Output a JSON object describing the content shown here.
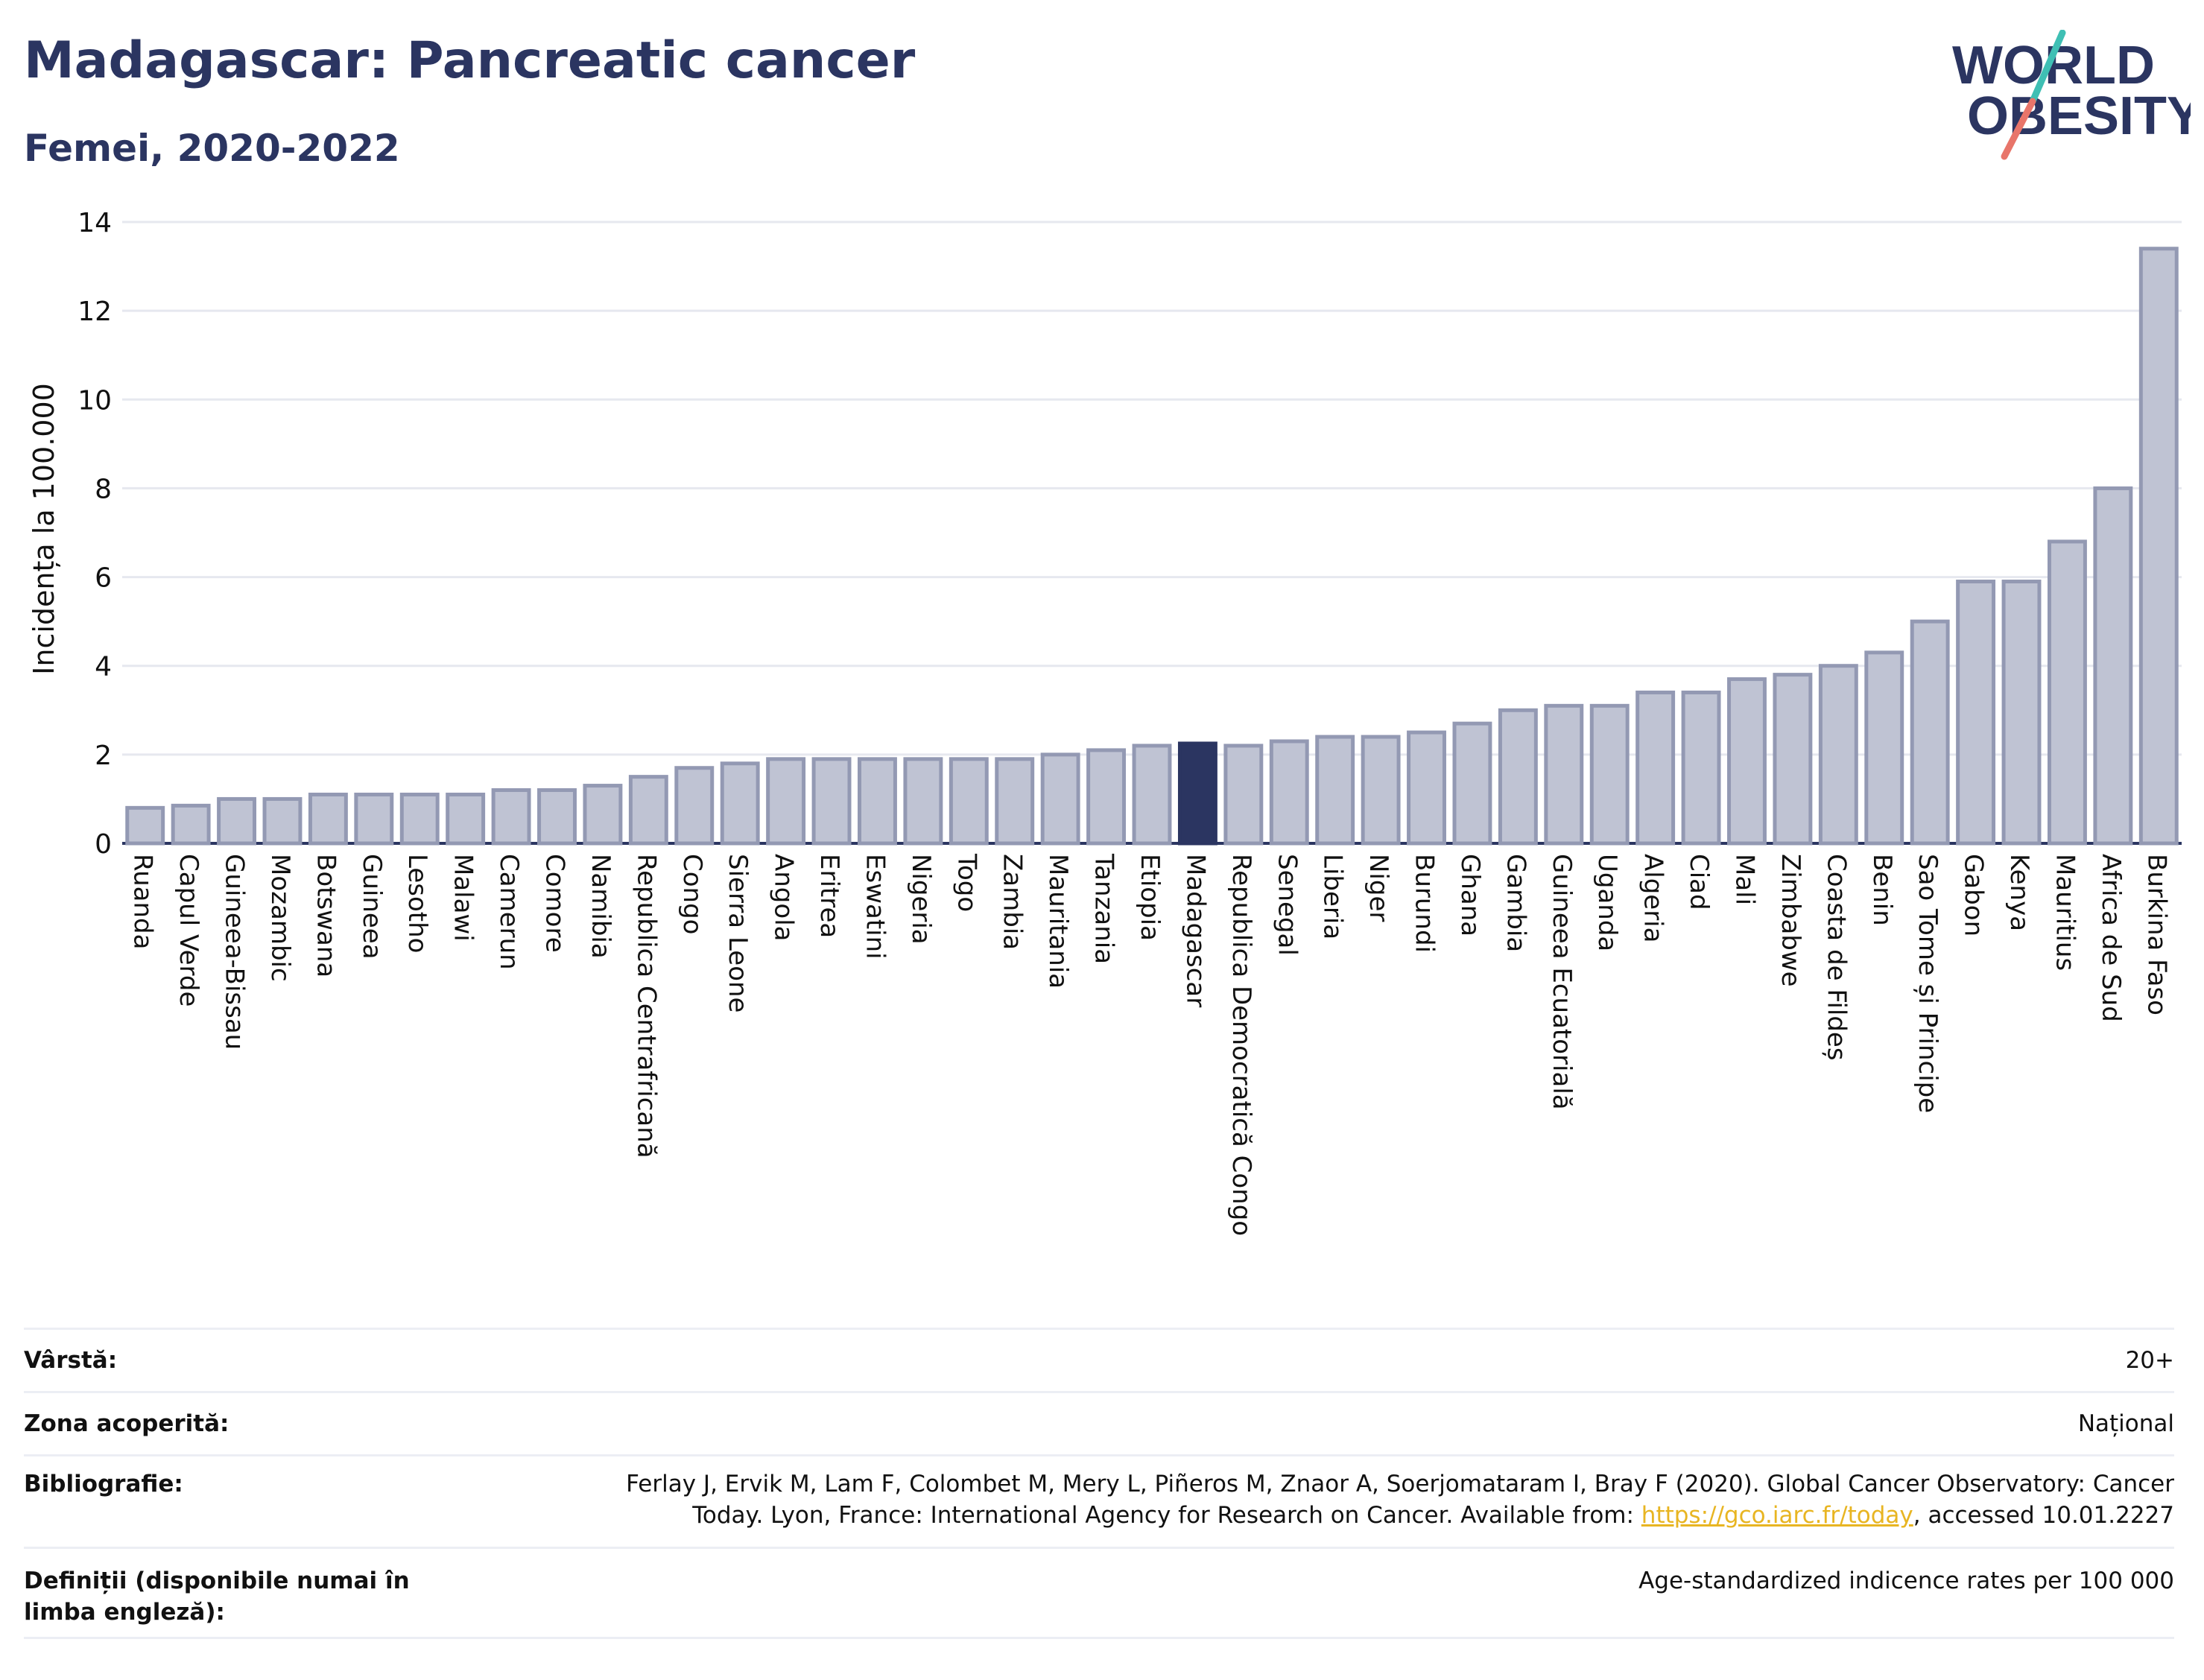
{
  "header": {
    "title": "Madagascar: Pancreatic cancer",
    "subtitle": "Femei, 2020-2022"
  },
  "logo": {
    "line1": "WORLD",
    "line2": "OBESITY"
  },
  "colors": {
    "bar_fill": "#bfc3d3",
    "bar_stroke": "#9399b3",
    "highlight": "#2b3561",
    "grid": "#e6e8ef",
    "axis": "#2b3561",
    "logo_slash_red": "#e8756a",
    "logo_slash_teal": "#3fbfb4"
  },
  "chart_data": {
    "type": "bar",
    "ylabel": "Incidența la 100.000",
    "xlabel": "",
    "ylim": [
      0,
      14
    ],
    "yticks": [
      0,
      2,
      4,
      6,
      8,
      10,
      12,
      14
    ],
    "grid": true,
    "highlight": "Madagascar",
    "categories": [
      "Ruanda",
      "Capul Verde",
      "Guineea-Bissau",
      "Mozambic",
      "Botswana",
      "Guineea",
      "Lesotho",
      "Malawi",
      "Camerun",
      "Comore",
      "Namibia",
      "Republica Centrafricană",
      "Congo",
      "Sierra Leone",
      "Angola",
      "Eritrea",
      "Eswatini",
      "Nigeria",
      "Togo",
      "Zambia",
      "Mauritania",
      "Tanzania",
      "Etiopia",
      "Madagascar",
      "Republica Democratică Congo",
      "Senegal",
      "Liberia",
      "Niger",
      "Burundi",
      "Ghana",
      "Gambia",
      "Guineea Ecuatorială",
      "Uganda",
      "Algeria",
      "Ciad",
      "Mali",
      "Zimbabwe",
      "Coasta de Fildeș",
      "Benin",
      "Sao Tome și Principe",
      "Gabon",
      "Kenya",
      "Mauritius",
      "Africa de Sud",
      "Burkina Faso"
    ],
    "values": [
      0.8,
      0.85,
      1.0,
      1.0,
      1.1,
      1.1,
      1.1,
      1.1,
      1.2,
      1.2,
      1.3,
      1.5,
      1.7,
      1.8,
      1.9,
      1.9,
      1.9,
      1.9,
      1.9,
      1.9,
      2.0,
      2.1,
      2.2,
      2.25,
      2.2,
      2.3,
      2.4,
      2.4,
      2.5,
      2.7,
      3.0,
      3.1,
      3.1,
      3.4,
      3.4,
      3.7,
      3.8,
      4.0,
      4.3,
      5.0,
      5.9,
      5.9,
      6.8,
      8.0,
      13.4
    ]
  },
  "meta": {
    "age_label": "Vârstă:",
    "age_value": "20+",
    "coverage_label": "Zona acoperită:",
    "coverage_value": "Național",
    "bib_label": "Bibliografie:",
    "bib_value_line1": "Ferlay J, Ervik M, Lam F, Colombet M, Mery L, Piñeros M, Znaor A, Soerjomataram I, Bray F (2020). Global Cancer Observatory: Cancer",
    "bib_value_line2a": "Today. Lyon, France: International Agency for Research on Cancer. Available from: ",
    "bib_link": "https://gco.iarc.fr/today",
    "bib_value_line2b": ", accessed 10.01.2227",
    "def_label": "Definiții (disponibile numai în limba engleză):",
    "def_value": "Age-standardized indicence rates per 100 000"
  }
}
